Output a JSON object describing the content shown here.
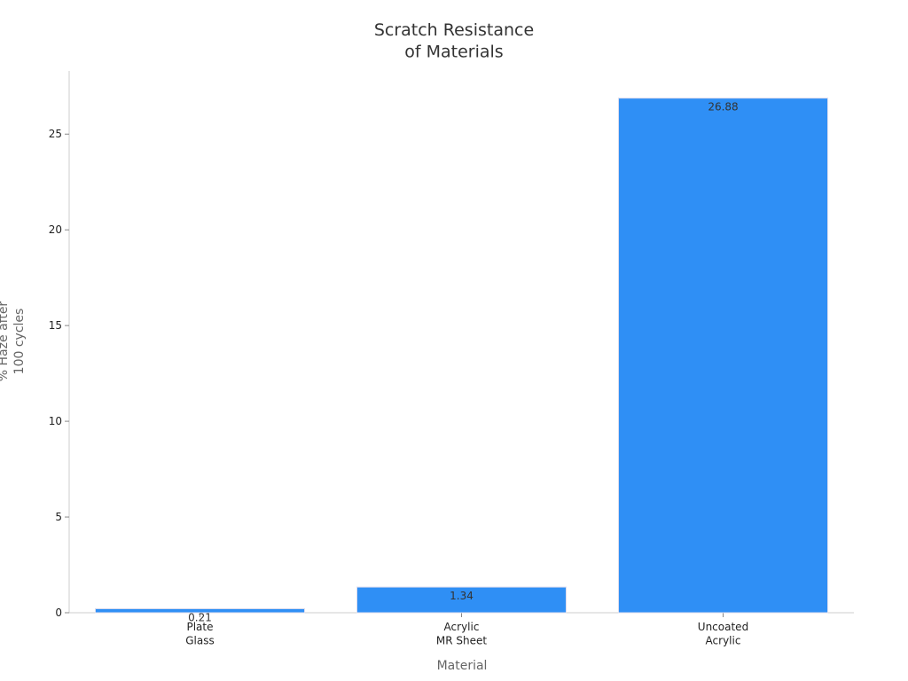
{
  "chart_data": {
    "type": "bar",
    "title": "Scratch Resistance\nof Materials",
    "x_label": "Material",
    "y_label": "% Haze after\n100 cycles",
    "categories": [
      "Plate\nGlass",
      "Acrylic\nMR Sheet",
      "Uncoated\nAcrylic"
    ],
    "values": [
      0.21,
      1.34,
      26.88
    ],
    "color": "#2f8ff5",
    "ylim": [
      0,
      28.3
    ],
    "yticks": [
      0,
      5,
      10,
      15,
      20,
      25
    ],
    "grid": false
  }
}
